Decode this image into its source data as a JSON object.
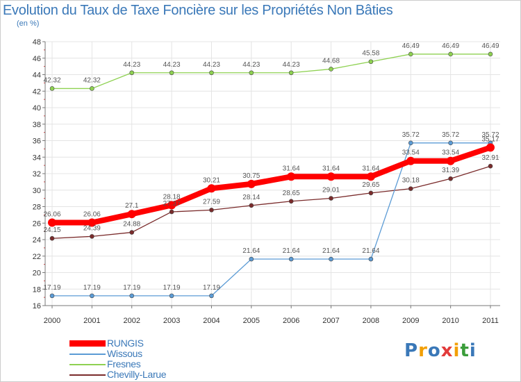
{
  "chart_data": {
    "type": "line",
    "title": "Evolution du Taux de Taxe Foncière sur les Propriétés Non Bâties",
    "ylabel": "(en %)",
    "ylim": [
      16,
      48
    ],
    "yticks": [
      "16",
      "18",
      "20",
      "22",
      "24",
      "26",
      "28",
      "30",
      "32",
      "34",
      "36",
      "38",
      "40",
      "42",
      "44",
      "46",
      "48"
    ],
    "categories": [
      "2000",
      "2001",
      "2002",
      "2003",
      "2004",
      "2005",
      "2006",
      "2007",
      "2008",
      "2009",
      "2010",
      "2011"
    ],
    "series": [
      {
        "name": "RUNGIS",
        "color": "#ff0000",
        "values": [
          26.06,
          26.06,
          27.1,
          28.18,
          30.21,
          30.75,
          31.64,
          31.64,
          31.64,
          33.54,
          33.54,
          35.17
        ],
        "labels": [
          "26.06",
          "26.06",
          "27.1",
          "28.18",
          "30.21",
          "30.75",
          "31.64",
          "31.64",
          "31.64",
          "33.54",
          "33.54",
          "35.17"
        ]
      },
      {
        "name": "Wissous",
        "color": "#5b9bd5",
        "values": [
          17.19,
          17.19,
          17.19,
          17.19,
          17.19,
          21.64,
          21.64,
          21.64,
          21.64,
          35.72,
          35.72,
          35.72
        ],
        "labels": [
          "17.19",
          "17.19",
          "17.19",
          "17.19",
          "17.19",
          "21.64",
          "21.64",
          "21.64",
          "21.64",
          "35.72",
          "35.72",
          "35.72"
        ]
      },
      {
        "name": "Fresnes",
        "color": "#8ed151",
        "values": [
          42.32,
          42.32,
          44.23,
          44.23,
          44.23,
          44.23,
          44.23,
          44.68,
          45.58,
          46.49,
          46.49,
          46.49
        ],
        "labels": [
          "42.32",
          "42.32",
          "44.23",
          "44.23",
          "44.23",
          "44.23",
          "44.23",
          "44.68",
          "45.58",
          "46.49",
          "46.49",
          "46.49"
        ]
      },
      {
        "name": "Chevilly-Larue",
        "color": "#7a2b2b",
        "values": [
          24.15,
          24.39,
          24.88,
          27.37,
          27.59,
          28.14,
          28.65,
          29.01,
          29.65,
          30.18,
          31.39,
          32.91
        ],
        "labels": [
          "24.15",
          "24.39",
          "24.88",
          "27.37",
          "27.59",
          "28.14",
          "28.65",
          "29.01",
          "29.65",
          "30.18",
          "31.39",
          "32.91"
        ]
      }
    ]
  },
  "logo": {
    "text": "Proxiti"
  }
}
